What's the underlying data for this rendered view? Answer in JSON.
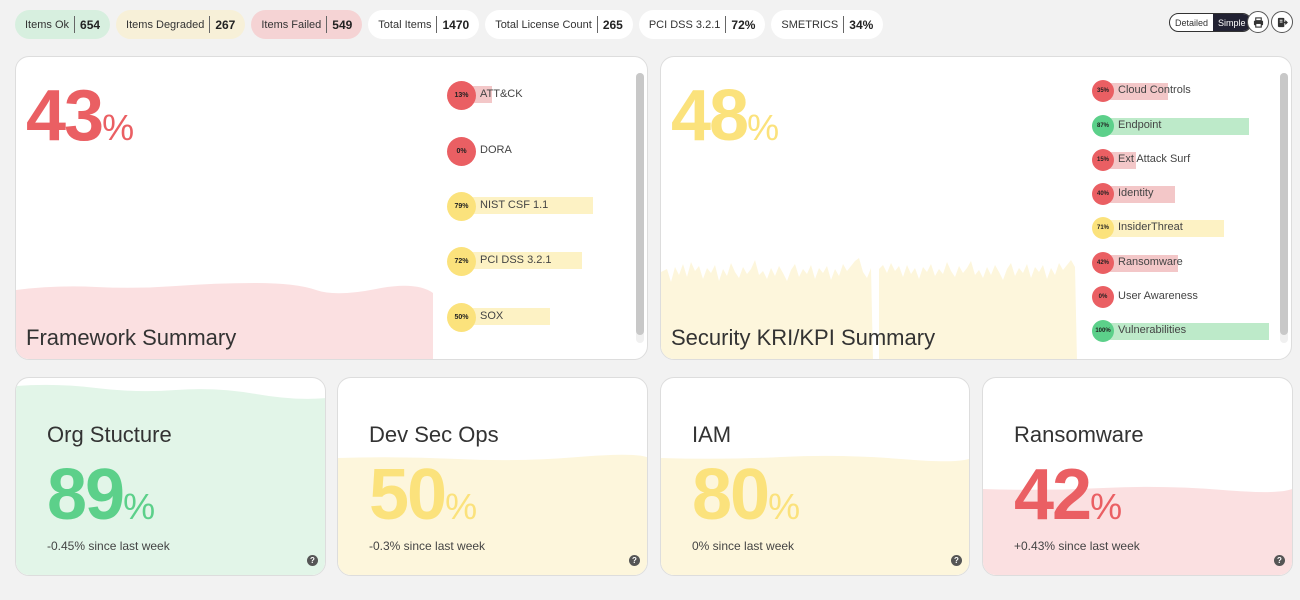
{
  "stats": [
    {
      "label": "Items Ok",
      "value": "654"
    },
    {
      "label": "Items Degraded",
      "value": "267"
    },
    {
      "label": "Items Failed",
      "value": "549"
    },
    {
      "label": "Total Items",
      "value": "1470"
    },
    {
      "label": "Total License Count",
      "value": "265"
    },
    {
      "label": "PCI DSS 3.2.1",
      "value": "72%"
    },
    {
      "label": "SMETRICS",
      "value": "34%"
    }
  ],
  "view_toggle": {
    "detailed": "Detailed",
    "simple": "Simple",
    "selected": "Simple"
  },
  "icons": {
    "print": "print-icon",
    "export": "export-icon",
    "help": "help-icon"
  },
  "colors": {
    "red": "#ea5f63",
    "yellow": "#fbe27c",
    "green": "#5cd08a",
    "red_bg": "#fbe0e1",
    "yellow_bg": "#fdf6dc",
    "green_bg": "#e2f5e8"
  },
  "framework_summary": {
    "title": "Framework Summary",
    "percent": "43",
    "percent_symbol": "%",
    "items": [
      {
        "label": "ATT&CK",
        "value": "13%",
        "pct": 13,
        "status": "red"
      },
      {
        "label": "DORA",
        "value": "0%",
        "pct": 0,
        "status": "red"
      },
      {
        "label": "NIST CSF 1.1",
        "value": "79%",
        "pct": 79,
        "status": "yellow"
      },
      {
        "label": "PCI DSS 3.2.1",
        "value": "72%",
        "pct": 72,
        "status": "yellow"
      },
      {
        "label": "SOX",
        "value": "50%",
        "pct": 50,
        "status": "yellow"
      }
    ]
  },
  "kri_summary": {
    "title": "Security KRI/KPI Summary",
    "percent": "48",
    "percent_symbol": "%",
    "items": [
      {
        "label": "Cloud Controls",
        "value": "35%",
        "pct": 35,
        "status": "red"
      },
      {
        "label": "Endpoint",
        "value": "87%",
        "pct": 87,
        "status": "green"
      },
      {
        "label": "Ext Attack Surf",
        "value": "15%",
        "pct": 15,
        "status": "red"
      },
      {
        "label": "Identity",
        "value": "40%",
        "pct": 40,
        "status": "red"
      },
      {
        "label": "InsiderThreat",
        "value": "71%",
        "pct": 71,
        "status": "yellow"
      },
      {
        "label": "Ransomware",
        "value": "42%",
        "pct": 42,
        "status": "red"
      },
      {
        "label": "User Awareness",
        "value": "0%",
        "pct": 0,
        "status": "red"
      },
      {
        "label": "Vulnerabilities",
        "value": "100%",
        "pct": 100,
        "status": "green"
      }
    ]
  },
  "cards": [
    {
      "title": "Org Stucture",
      "percent": "89",
      "percent_symbol": "%",
      "delta": "-0.45% since last week",
      "status": "green"
    },
    {
      "title": "Dev Sec Ops",
      "percent": "50",
      "percent_symbol": "%",
      "delta": "-0.3% since last week",
      "status": "yellow"
    },
    {
      "title": "IAM",
      "percent": "80",
      "percent_symbol": "%",
      "delta": "0% since last week",
      "status": "yellow"
    },
    {
      "title": "Ransomware",
      "percent": "42",
      "percent_symbol": "%",
      "delta": "+0.43% since last week",
      "status": "red"
    }
  ]
}
